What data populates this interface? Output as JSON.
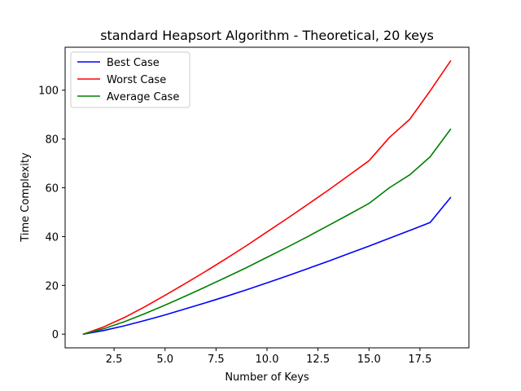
{
  "chart_data": {
    "type": "line",
    "title": "standard Heapsort Algorithm - Theoretical, 20 keys",
    "xlabel": "Number of Keys",
    "ylabel": "Time Complexity",
    "xlim": [
      0.1,
      19.9
    ],
    "ylim": [
      -5.6,
      117.6
    ],
    "xticks": [
      2.5,
      5.0,
      7.5,
      10.0,
      12.5,
      15.0,
      17.5
    ],
    "xtick_labels": [
      "2.5",
      "5.0",
      "7.5",
      "10.0",
      "12.5",
      "15.0",
      "17.5"
    ],
    "yticks": [
      0,
      20,
      40,
      60,
      80,
      100
    ],
    "ytick_labels": [
      "0",
      "20",
      "40",
      "60",
      "80",
      "100"
    ],
    "grid": false,
    "legend_position": "top-left",
    "x": [
      1,
      2,
      3,
      4,
      5,
      6,
      7,
      8,
      9,
      10,
      11,
      12,
      13,
      14,
      15,
      16,
      17,
      18,
      19
    ],
    "series": [
      {
        "name": "Best Case",
        "color": "#0000ff",
        "values": [
          0,
          1.5,
          3.4,
          5.6,
          7.9,
          10.4,
          12.9,
          15.5,
          18.2,
          21.0,
          23.9,
          26.9,
          29.9,
          33.0,
          36.1,
          39.3,
          42.5,
          45.8,
          56.0
        ]
      },
      {
        "name": "Worst Case",
        "color": "#ff0000",
        "values": [
          0,
          3.0,
          6.8,
          11.2,
          15.9,
          20.8,
          25.8,
          31.0,
          36.3,
          41.9,
          47.5,
          53.2,
          59.0,
          65.0,
          71.1,
          80.6,
          88.1,
          99.7,
          112.0
        ]
      },
      {
        "name": "Average Case",
        "color": "#008000",
        "values": [
          0,
          2.25,
          5.1,
          8.4,
          11.9,
          15.6,
          19.4,
          23.3,
          27.3,
          31.5,
          35.7,
          40.0,
          44.5,
          49.0,
          53.6,
          60.0,
          65.3,
          72.7,
          84.0
        ]
      }
    ]
  }
}
